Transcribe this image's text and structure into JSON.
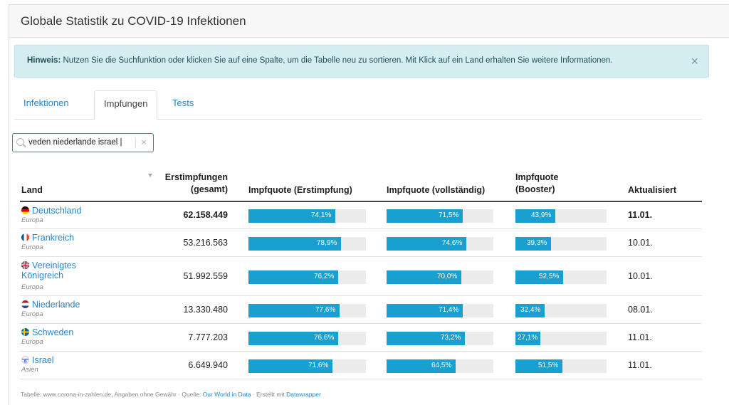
{
  "header": {
    "title": "Globale Statistik zu COVID-19 Infektionen"
  },
  "alert": {
    "label": "Hinweis:",
    "text": " Nutzen Sie die Suchfunktion oder klicken Sie auf eine Spalte, um die Tabelle neu zu sortieren. Mit Klick auf ein Land erhalten Sie weitere Informationen.",
    "close": "×"
  },
  "tabs": [
    {
      "label": "Infektionen"
    },
    {
      "label": "Impfungen"
    },
    {
      "label": "Tests"
    }
  ],
  "search": {
    "value": "veden niederlande israel |",
    "clear": "×"
  },
  "table": {
    "columns": {
      "land": "Land",
      "erst_line1": "Erstimpfungen",
      "erst_line2": "(gesamt)",
      "quote_erst": "Impfquote (Erstimpfung)",
      "quote_voll": "Impfquote (vollständig)",
      "booster_line1": "Impfquote",
      "booster_line2": "(Booster)",
      "updated": "Aktualisiert"
    },
    "rows": [
      {
        "country": "Deutschland",
        "continent": "Europa",
        "erst": "62.158.449",
        "q1": "74,1%",
        "q1v": 74.1,
        "q2": "71,5%",
        "q2v": 71.5,
        "q3": "43,9%",
        "q3v": 43.9,
        "date": "11.01.",
        "flag": "de"
      },
      {
        "country": "Frankreich",
        "continent": "Europa",
        "erst": "53.216.563",
        "q1": "78,9%",
        "q1v": 78.9,
        "q2": "74,6%",
        "q2v": 74.6,
        "q3": "39,3%",
        "q3v": 39.3,
        "date": "10.01.",
        "flag": "fr"
      },
      {
        "country": "Vereinigtes Königreich",
        "country_line1": "Vereinigtes",
        "country_line2": "Königreich",
        "continent": "Europa",
        "erst": "51.992.559",
        "q1": "76,2%",
        "q1v": 76.2,
        "q2": "70,0%",
        "q2v": 70.0,
        "q3": "52,5%",
        "q3v": 52.5,
        "date": "10.01.",
        "flag": "gb"
      },
      {
        "country": "Niederlande",
        "continent": "Europa",
        "erst": "13.330.480",
        "q1": "77,6%",
        "q1v": 77.6,
        "q2": "71,4%",
        "q2v": 71.4,
        "q3": "32,4%",
        "q3v": 32.4,
        "date": "08.01.",
        "flag": "nl"
      },
      {
        "country": "Schweden",
        "continent": "Europa",
        "erst": "7.777.203",
        "q1": "76,6%",
        "q1v": 76.6,
        "q2": "73,2%",
        "q2v": 73.2,
        "q3": "27,1%",
        "q3v": 27.1,
        "date": "11.01.",
        "flag": "se"
      },
      {
        "country": "Israel",
        "continent": "Asien",
        "erst": "6.649.940",
        "q1": "71,6%",
        "q1v": 71.6,
        "q2": "64,5%",
        "q2v": 64.5,
        "q3": "51,5%",
        "q3v": 51.5,
        "date": "11.01.",
        "flag": "il"
      }
    ]
  },
  "footer": {
    "prefix": "Tabelle: www.corona-in-zahlen.de, Angaben ohne Gewähr · Quelle: ",
    "source": "Our World in Data",
    "middle": " · Erstellt mit ",
    "tool": "Datawrapper"
  },
  "colors": {
    "accent": "#1a9fd1",
    "link": "#2a86c7",
    "bar_bg": "#ececec",
    "alert_bg": "#d4eef2"
  }
}
